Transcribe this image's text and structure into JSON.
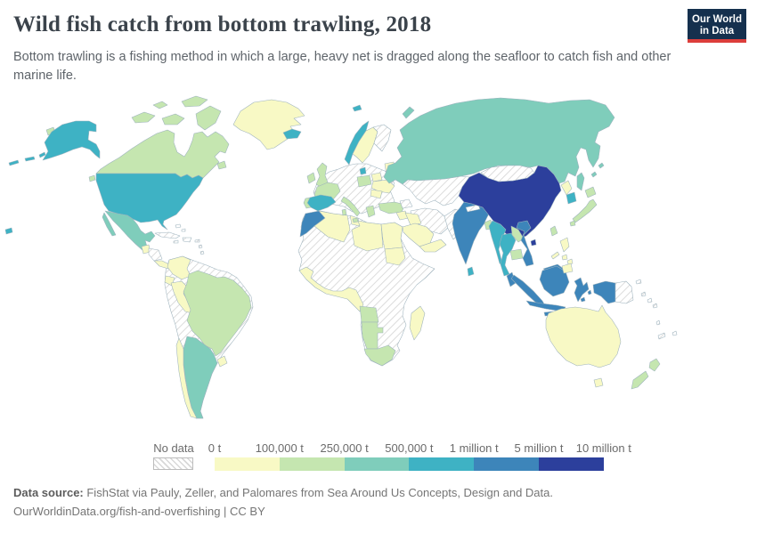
{
  "header": {
    "title": "Wild fish catch from bottom trawling, 2018",
    "subtitle": "Bottom trawling is a fishing method in which a large, heavy net is dragged along the seafloor to catch fish and other marine life.",
    "logo": {
      "line1": "Our World",
      "line2": "in Data"
    }
  },
  "legend": {
    "no_data_label": "No data",
    "ticks": [
      "0 t",
      "100,000 t",
      "250,000 t",
      "500,000 t",
      "1 million t",
      "5 million t",
      "10 million t"
    ]
  },
  "footer": {
    "source_label": "Data source:",
    "source_text": " FishStat via Pauly, Zeller, and Palomares from Sea Around Us Concepts, Design and Data.",
    "line2": "OurWorldinData.org/fish-and-overfishing | CC BY"
  },
  "chart_data": {
    "type": "choropleth",
    "title": "Wild fish catch from bottom trawling, 2018",
    "unit": "tonnes",
    "legend_position": "bottom",
    "bins": [
      {
        "id": "bin1",
        "range": "0 t – 100,000 t",
        "color": "#f8f9c5"
      },
      {
        "id": "bin2",
        "range": "100,000 t – 250,000 t",
        "color": "#c5e6b0"
      },
      {
        "id": "bin3",
        "range": "250,000 t – 500,000 t",
        "color": "#7fcdbb"
      },
      {
        "id": "bin4",
        "range": "500,000 t – 1 million t",
        "color": "#3eb2c4"
      },
      {
        "id": "bin5",
        "range": "1 million t – 5 million t",
        "color": "#3d85ba"
      },
      {
        "id": "bin6",
        "range": "5 million t – 10 million t",
        "color": "#2c3f9c"
      },
      {
        "id": "no_data",
        "range": "No data",
        "color": "hatch"
      }
    ],
    "countries": {
      "greenland": "bin1",
      "iceland": "bin4",
      "canada": "bin2",
      "united_states": "bin4",
      "hawaii": "bin4",
      "st_lawrence_island": "bin2",
      "vancouver_island": "bin2",
      "mexico": "bin3",
      "guatemala": "bin1",
      "honduras_nicaragua": "no_data",
      "costa_rica_panama": "bin1",
      "cuba": "no_data",
      "hispaniola": "no_data",
      "caribbean": "no_data",
      "bahamas": "no_data",
      "colombia": "bin1",
      "ecuador": "bin1",
      "peru": "bin1",
      "brazil": "bin2",
      "argentina": "bin3",
      "chile": "bin1",
      "uruguay": "bin1",
      "south_america_interior": "no_data",
      "morocco": "bin5",
      "algeria": "bin1",
      "tunisia": "bin1",
      "libya": "bin1",
      "egypt": "bin1",
      "sudan": "bin1",
      "west_africa": "bin1",
      "angola": "bin2",
      "namibia": "bin2",
      "south_africa": "bin2",
      "madagascar": "bin1",
      "africa_interior": "no_data",
      "norway": "bin4",
      "sweden": "bin1",
      "finland": "no_data",
      "denmark": "bin4",
      "baltics": "bin1",
      "united_kingdom": "bin2",
      "ireland": "bin2",
      "france": "bin2",
      "spain": "bin4",
      "portugal": "bin2",
      "italy": "bin2",
      "poland": "bin2",
      "belarus": "bin1",
      "ukraine": "bin1",
      "romania": "bin1",
      "greece": "bin2",
      "turkey": "bin2",
      "central_europe": "no_data",
      "russia": "bin3",
      "svalbard": "bin4",
      "novaya_zemlya": "bin3",
      "sakhalin": "bin3",
      "kurils": "bin3",
      "central_asia": "no_data",
      "caucasus": "no_data",
      "iran": "no_data",
      "afghanistan_pakistan": "no_data",
      "levant": "bin1",
      "iraq": "bin1",
      "saudi_arabia": "bin1",
      "yemen_oman": "bin1",
      "india": "bin5",
      "nepal": "no_data",
      "bangladesh": "bin2",
      "sri_lanka": "bin4",
      "china": "bin6",
      "hainan": "bin6",
      "mongolia": "no_data",
      "north_korea": "bin1",
      "south_korea": "bin4",
      "japan": "bin2",
      "taiwan": "bin2",
      "myanmar": "bin4",
      "thailand": "bin4",
      "laos": "bin2",
      "cambodia": "bin2",
      "vietnam": "bin5",
      "malaysia": "bin5",
      "indonesia": "bin5",
      "philippines": "bin1",
      "papua_new_guinea": "no_data",
      "pacific_islands": "no_data",
      "australia": "bin1",
      "new_zealand": "bin2"
    }
  }
}
